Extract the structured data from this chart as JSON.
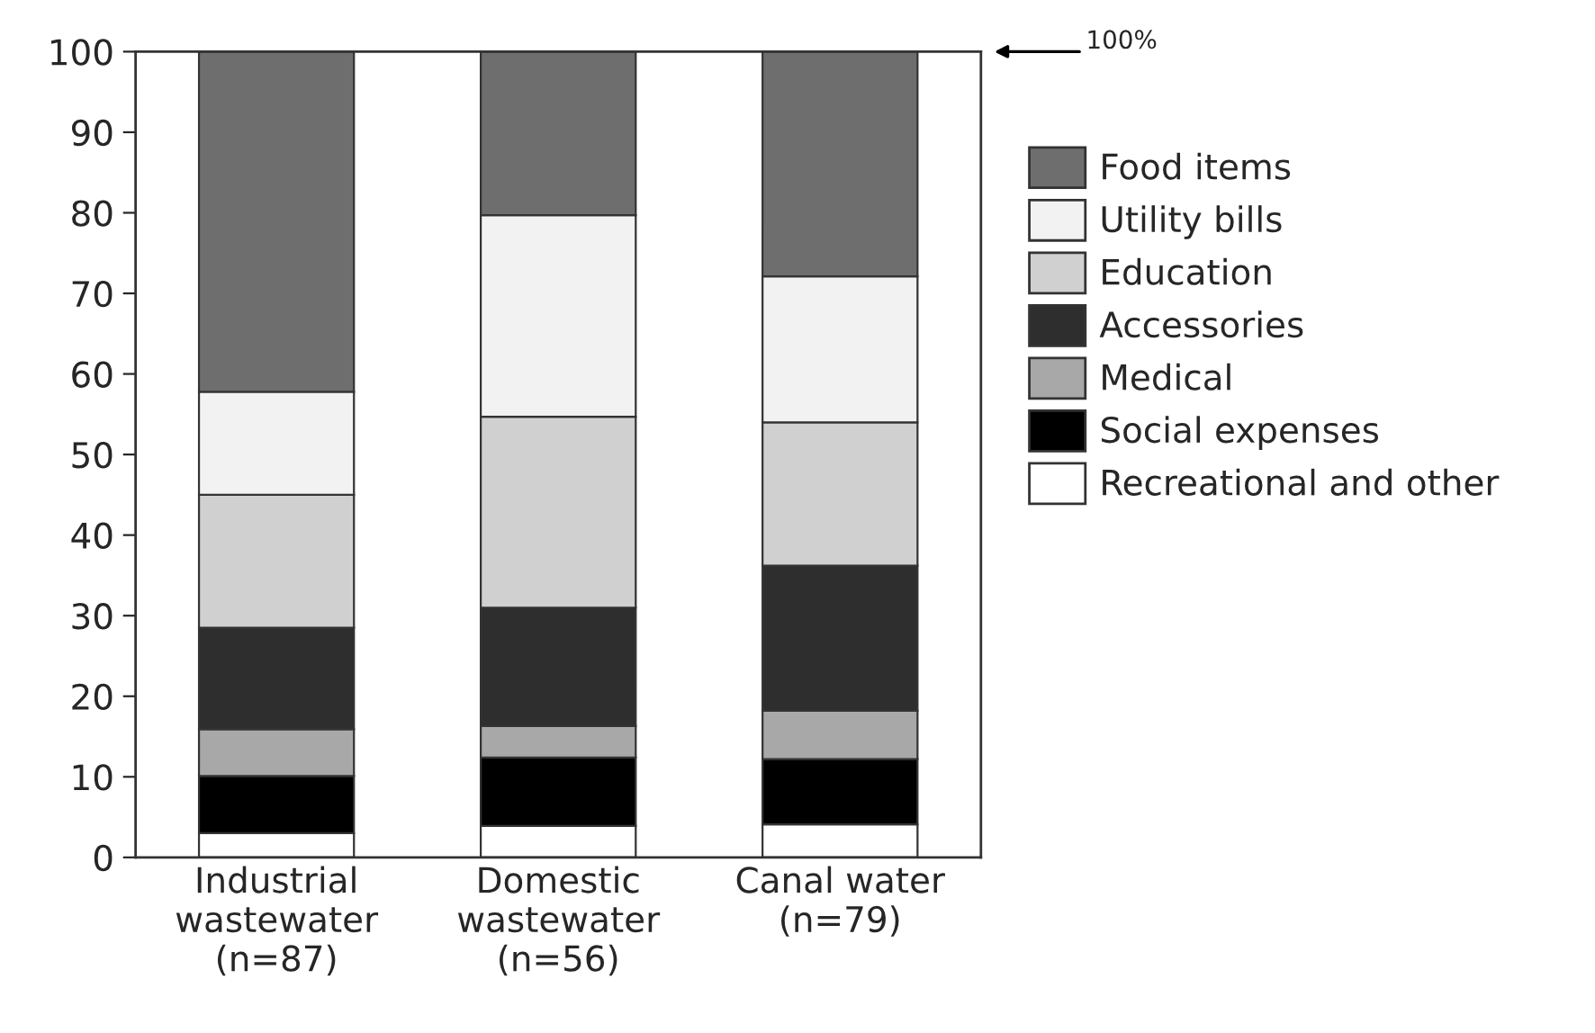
{
  "chart_data": {
    "type": "bar",
    "stacked": true,
    "categories": [
      "Industrial\nwastewater\n(n=87)",
      "Domestic\nwastewater\n(n=56)",
      "Canal water\n(n=79)"
    ],
    "series": [
      {
        "name": "Recreational and other",
        "color": "#ffffff",
        "values": [
          3.0,
          3.9,
          4.1
        ]
      },
      {
        "name": "Social expenses",
        "color": "#000000",
        "values": [
          7.1,
          8.5,
          8.1
        ]
      },
      {
        "name": "Medical",
        "color": "#a8a8a8",
        "values": [
          5.8,
          3.9,
          6.0
        ]
      },
      {
        "name": "Accessories",
        "color": "#2e2e2e",
        "values": [
          12.6,
          14.7,
          18.0
        ]
      },
      {
        "name": "Education",
        "color": "#d0d0d0",
        "values": [
          16.5,
          23.7,
          17.8
        ]
      },
      {
        "name": "Utility bills",
        "color": "#f2f2f2",
        "values": [
          12.8,
          25.0,
          18.1
        ]
      },
      {
        "name": "Food items",
        "color": "#6e6e6e",
        "values": [
          42.2,
          20.3,
          27.9
        ]
      }
    ],
    "ylim": [
      0,
      100
    ],
    "yticks": [
      0,
      10,
      20,
      30,
      40,
      50,
      60,
      70,
      80,
      90,
      100
    ],
    "annotations": [
      "100%"
    ],
    "grid": false,
    "legend": "right"
  }
}
